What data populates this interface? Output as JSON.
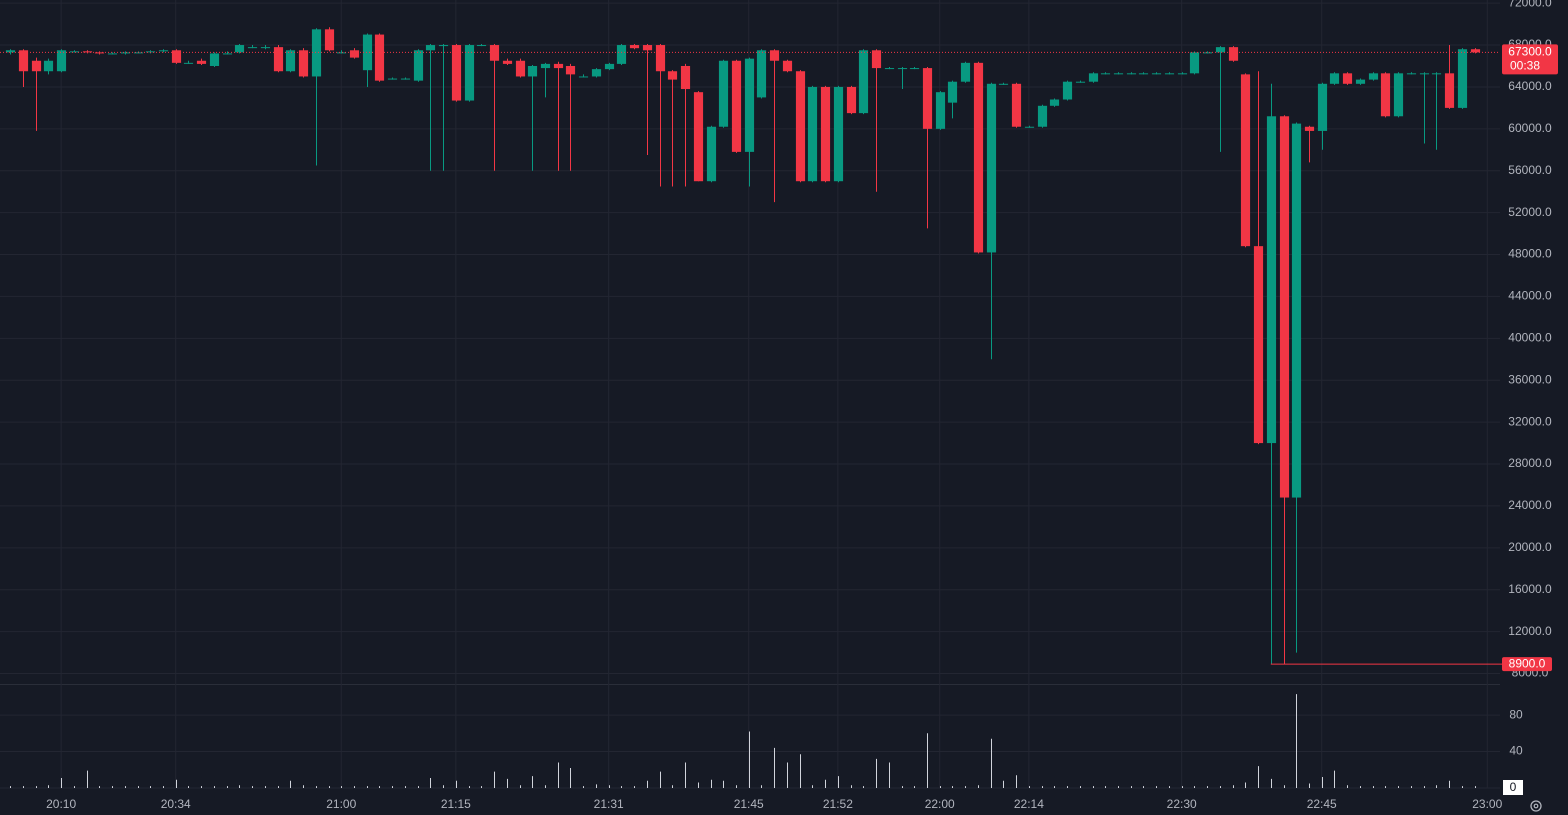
{
  "chart_data": {
    "type": "candlestick",
    "up_color": "#089981",
    "down_color": "#f23645",
    "volume_color": "#d1d4dc",
    "grid": true,
    "open": [
      67300,
      67500,
      66500,
      65500,
      65500,
      67400,
      67400,
      67300,
      67200,
      67200,
      67300,
      67300,
      67400,
      67500,
      66300,
      66500,
      66000,
      67200,
      67300,
      67800,
      67800,
      67800,
      65500,
      67500,
      65000,
      69500,
      67300,
      67500,
      65600,
      69000,
      64800,
      64800,
      64600,
      67500,
      67900,
      68000,
      62700,
      68000,
      68000,
      66500,
      66500,
      65000,
      65800,
      66200,
      66000,
      65000,
      65000,
      65700,
      66200,
      68000,
      68000,
      68000,
      65500,
      66000,
      63500,
      55000,
      60200,
      66500,
      57800,
      63000,
      67500,
      66500,
      65500,
      55000,
      64000,
      55000,
      64000,
      61500,
      67500,
      65800,
      65800,
      65800,
      65800,
      60000,
      62500,
      64500,
      66300,
      48200,
      64300,
      64300,
      60200,
      60200,
      62200,
      62800,
      64500,
      64500,
      65300,
      65300,
      65300,
      65300,
      65300,
      65300,
      65300,
      65300,
      67300,
      67300,
      67800,
      65200,
      48800,
      30000,
      61200,
      24800,
      60200,
      59800,
      64300,
      65300,
      64300,
      64700,
      65300,
      61200,
      65300,
      65300,
      65300,
      65300,
      62000,
      67600
    ],
    "high": [
      67600,
      67600,
      66800,
      66700,
      67600,
      67500,
      67500,
      67400,
      67300,
      67400,
      67400,
      67500,
      67600,
      67600,
      66500,
      66700,
      67300,
      67400,
      68100,
      68000,
      68000,
      68000,
      67600,
      67700,
      69600,
      69700,
      67500,
      67700,
      69100,
      69100,
      64900,
      64900,
      67600,
      68100,
      68100,
      68100,
      68100,
      68100,
      68100,
      66700,
      66700,
      66100,
      66300,
      66400,
      66200,
      65200,
      65800,
      66300,
      68100,
      68100,
      68100,
      68100,
      65600,
      66200,
      63600,
      60300,
      66600,
      66600,
      66800,
      67600,
      67600,
      66600,
      65600,
      64100,
      64100,
      64100,
      64100,
      67600,
      67600,
      65900,
      65900,
      65900,
      65900,
      63600,
      64600,
      66400,
      66400,
      64400,
      64400,
      64400,
      60300,
      62300,
      62900,
      64600,
      64600,
      65400,
      65400,
      65400,
      65400,
      65400,
      65400,
      65400,
      65400,
      67400,
      67400,
      67900,
      67900,
      65300,
      65500,
      64300,
      61300,
      60600,
      60300,
      64400,
      65400,
      65400,
      64800,
      65400,
      65400,
      65400,
      65400,
      65400,
      65400,
      68000,
      67700,
      67700
    ],
    "low": [
      67100,
      64000,
      59800,
      65200,
      65400,
      67300,
      67200,
      67100,
      67100,
      67100,
      67200,
      67200,
      67300,
      66200,
      66200,
      66100,
      65900,
      67100,
      67200,
      67700,
      67600,
      65400,
      65400,
      64900,
      56500,
      67400,
      67200,
      66700,
      64000,
      64500,
      64700,
      64700,
      64500,
      56000,
      56000,
      62600,
      62600,
      67900,
      56000,
      66100,
      64900,
      56000,
      63000,
      56000,
      56000,
      64900,
      64900,
      65600,
      66100,
      67600,
      57500,
      54500,
      54500,
      54500,
      55000,
      54900,
      60100,
      57700,
      54500,
      62900,
      53000,
      65400,
      54900,
      54900,
      54900,
      54900,
      61400,
      61400,
      54000,
      65700,
      63800,
      65700,
      50500,
      59900,
      61000,
      64400,
      48100,
      38000,
      64200,
      60100,
      60100,
      60100,
      62100,
      62700,
      64400,
      64400,
      65200,
      65200,
      65200,
      65200,
      65200,
      65200,
      65200,
      65200,
      67200,
      57800,
      66400,
      48700,
      29900,
      8900,
      8900,
      10000,
      56800,
      58000,
      64200,
      64200,
      64200,
      64600,
      61100,
      61100,
      65200,
      58600,
      58000,
      61900,
      61900,
      67200
    ],
    "close": [
      67500,
      65500,
      65500,
      66500,
      67500,
      67400,
      67300,
      67200,
      67200,
      67300,
      67300,
      67400,
      67500,
      66300,
      66300,
      66200,
      67200,
      67200,
      68000,
      67800,
      67800,
      65500,
      67500,
      65000,
      69500,
      67500,
      67300,
      66800,
      69000,
      64600,
      64800,
      64800,
      67500,
      68000,
      68000,
      62700,
      68000,
      68000,
      66500,
      66200,
      65000,
      66000,
      66200,
      65800,
      65200,
      65000,
      65700,
      66200,
      68000,
      67700,
      67500,
      65500,
      64700,
      63800,
      55000,
      60200,
      66500,
      57800,
      66700,
      67500,
      66500,
      65500,
      55000,
      64000,
      55000,
      64000,
      61500,
      67500,
      65800,
      65800,
      65800,
      65800,
      60000,
      63500,
      64500,
      66300,
      48200,
      64300,
      64300,
      60200,
      60200,
      62200,
      62800,
      64500,
      64500,
      65300,
      65300,
      65300,
      65300,
      65300,
      65300,
      65300,
      65300,
      67300,
      67300,
      67800,
      66500,
      48800,
      30000,
      61200,
      24800,
      60500,
      59800,
      64300,
      65300,
      64300,
      64700,
      65300,
      61200,
      65300,
      65300,
      65300,
      65300,
      62000,
      67600,
      67300
    ],
    "volume": [
      2,
      2,
      2,
      3,
      11,
      2,
      19,
      2,
      2,
      2,
      2,
      2,
      2,
      9,
      2,
      2,
      2,
      2,
      3,
      2,
      2,
      2,
      8,
      3,
      2,
      2,
      2,
      2,
      2,
      2,
      2,
      2,
      2,
      11,
      3,
      8,
      2,
      2,
      18,
      10,
      3,
      13,
      3,
      28,
      22,
      2,
      4,
      3,
      2,
      2,
      8,
      18,
      3,
      28,
      6,
      9,
      8,
      3,
      62,
      3,
      44,
      28,
      37,
      3,
      9,
      13,
      3,
      2,
      32,
      28,
      2,
      2,
      60,
      2,
      2,
      2,
      3,
      54,
      8,
      14,
      2,
      2,
      2,
      2,
      2,
      2,
      2,
      2,
      2,
      2,
      2,
      2,
      2,
      2,
      2,
      2,
      3,
      6,
      24,
      10,
      3,
      103,
      5,
      12,
      19,
      3,
      2,
      2,
      2,
      2,
      2,
      2,
      3,
      8,
      2,
      2
    ],
    "xlim": [
      -0.8,
      117
    ],
    "xticks": [
      {
        "value": 4,
        "label": "20:10"
      },
      {
        "value": 13,
        "label": "20:34"
      },
      {
        "value": 26,
        "label": "21:00"
      },
      {
        "value": 35,
        "label": "21:15"
      },
      {
        "value": 47,
        "label": "21:31"
      },
      {
        "value": 58,
        "label": "21:45"
      },
      {
        "value": 65,
        "label": "21:52"
      },
      {
        "value": 73,
        "label": "22:00"
      },
      {
        "value": 80,
        "label": "22:14"
      },
      {
        "value": 92,
        "label": "22:30"
      },
      {
        "value": 103,
        "label": "22:45"
      },
      {
        "value": 116,
        "label": "23:00"
      }
    ],
    "ylim": [
      7000,
      72300
    ],
    "yticks": [
      {
        "value": 8000,
        "label": "8000.0"
      },
      {
        "value": 12000,
        "label": "12000.0"
      },
      {
        "value": 16000,
        "label": "16000.0"
      },
      {
        "value": 20000,
        "label": "20000.0"
      },
      {
        "value": 24000,
        "label": "24000.0"
      },
      {
        "value": 28000,
        "label": "28000.0"
      },
      {
        "value": 32000,
        "label": "32000.0"
      },
      {
        "value": 36000,
        "label": "36000.0"
      },
      {
        "value": 40000,
        "label": "40000.0"
      },
      {
        "value": 44000,
        "label": "44000.0"
      },
      {
        "value": 48000,
        "label": "48000.0"
      },
      {
        "value": 52000,
        "label": "52000.0"
      },
      {
        "value": 56000,
        "label": "56000.0"
      },
      {
        "value": 60000,
        "label": "60000.0"
      },
      {
        "value": 64000,
        "label": "64000.0"
      },
      {
        "value": 68000,
        "label": "68000.0"
      },
      {
        "value": 72000,
        "label": "72000.0"
      }
    ],
    "volume_lim": [
      0,
      113
    ],
    "volume_ticks": [
      0,
      40,
      80
    ],
    "last_price": {
      "value": 67300,
      "label": "67300.0"
    },
    "countdown": "00:38",
    "low_marker": {
      "value": 8900,
      "label": "8900.0"
    }
  }
}
